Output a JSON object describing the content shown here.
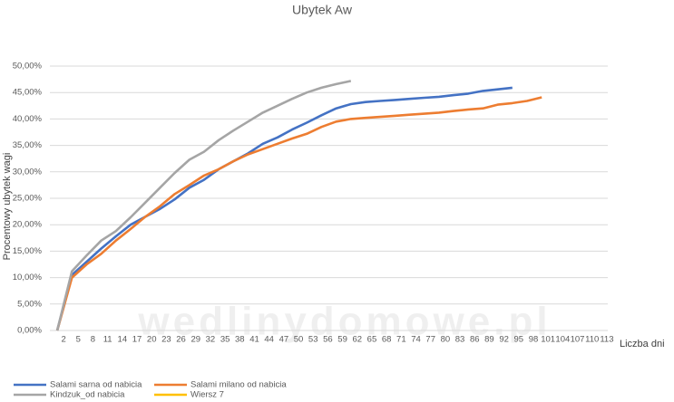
{
  "chart_data": {
    "type": "line",
    "title": "Ubytek Aw",
    "y_label": "Procentowy ubytek wagi",
    "x_label": "Liczba dni",
    "watermark": "wedlinydomowe.pl",
    "categories": [
      "2",
      "5",
      "8",
      "11",
      "14",
      "17",
      "20",
      "23",
      "26",
      "29",
      "32",
      "35",
      "38",
      "41",
      "44",
      "47",
      "50",
      "53",
      "56",
      "59",
      "62",
      "65",
      "68",
      "71",
      "74",
      "77",
      "80",
      "83",
      "86",
      "89",
      "92",
      "95",
      "98",
      "101",
      "104",
      "107",
      "110",
      "113"
    ],
    "series": [
      {
        "name": "Salami sarna od nabicia",
        "color": "#4472c4",
        "values": [
          0,
          10.5,
          13,
          15.5,
          17.8,
          20,
          21.5,
          23,
          24.8,
          27,
          28.5,
          30.5,
          32,
          33.5,
          35.3,
          36.5,
          38,
          39.3,
          40.7,
          42,
          42.8,
          43.2,
          43.4,
          43.6,
          43.8,
          44,
          44.2,
          44.5,
          44.8,
          45.3,
          45.6,
          45.9,
          null,
          null,
          null,
          null,
          null,
          null
        ]
      },
      {
        "name": "Salami milano od nabicia",
        "color": "#ed7d31",
        "values": [
          0,
          10,
          12.5,
          14.5,
          17,
          19.2,
          21.5,
          23.5,
          25.8,
          27.5,
          29.3,
          30.5,
          32,
          33.3,
          34.3,
          35.3,
          36.3,
          37.2,
          38.5,
          39.5,
          40,
          40.2,
          40.4,
          40.6,
          40.8,
          41,
          41.2,
          41.5,
          41.8,
          42,
          42.7,
          43,
          43.4,
          44.1,
          null,
          null,
          null,
          null
        ]
      },
      {
        "name": "Kindzuk_od nabicia",
        "color": "#a5a5a5",
        "values": [
          0,
          11.2,
          14.2,
          17,
          18.8,
          21.4,
          24.2,
          27,
          29.8,
          32.3,
          33.8,
          36,
          37.8,
          39.5,
          41.2,
          42.5,
          43.8,
          45,
          45.9,
          46.6,
          47.2,
          null,
          null,
          null,
          null,
          null,
          null,
          null,
          null,
          null,
          null,
          null,
          null,
          null,
          null,
          null,
          null,
          null
        ]
      },
      {
        "name": "Wiersz 7",
        "color": "#ffc000",
        "values": [
          null,
          null,
          null,
          null,
          null,
          null,
          null,
          null,
          null,
          null,
          null,
          null,
          null,
          null,
          null,
          null,
          null,
          null,
          null,
          null,
          null,
          null,
          null,
          null,
          null,
          null,
          null,
          null,
          null,
          null,
          null,
          null,
          null,
          null,
          null,
          null,
          null,
          null
        ]
      }
    ],
    "ylim": [
      0,
      50
    ],
    "yticks": [
      {
        "value": 0,
        "label": "0,00%"
      },
      {
        "value": 5,
        "label": "5,00%"
      },
      {
        "value": 10,
        "label": "10,00%"
      },
      {
        "value": 15,
        "label": "15,00%"
      },
      {
        "value": 20,
        "label": "20,00%"
      },
      {
        "value": 25,
        "label": "25,00%"
      },
      {
        "value": 30,
        "label": "30,00%"
      },
      {
        "value": 35,
        "label": "35,00%"
      },
      {
        "value": 40,
        "label": "40,00%"
      },
      {
        "value": 45,
        "label": "45,00%"
      },
      {
        "value": 50,
        "label": "50,00%"
      }
    ],
    "grid": true,
    "legend": "bottom"
  }
}
